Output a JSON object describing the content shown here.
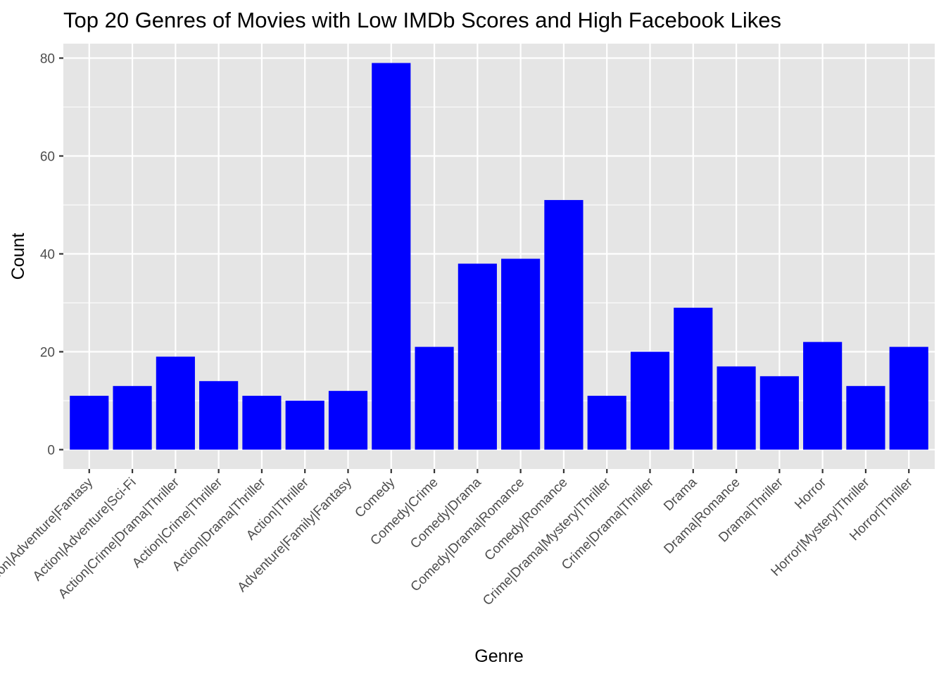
{
  "chart_data": {
    "type": "bar",
    "title": "Top 20 Genres of Movies with Low IMDb Scores and High Facebook Likes",
    "xlabel": "Genre",
    "ylabel": "Count",
    "ylim": [
      -3.95,
      82.95
    ],
    "yticks": [
      0,
      20,
      40,
      60,
      80
    ],
    "grid": true,
    "legend": "none",
    "bar_color": "#0000ff",
    "panel_color": "#e5e5e5",
    "grid_color": "#ffffff",
    "categories": [
      "Action|Adventure|Fantasy",
      "Action|Adventure|Sci-Fi",
      "Action|Crime|Drama|Thriller",
      "Action|Crime|Thriller",
      "Action|Drama|Thriller",
      "Action|Thriller",
      "Adventure|Family|Fantasy",
      "Comedy",
      "Comedy|Crime",
      "Comedy|Drama",
      "Comedy|Drama|Romance",
      "Comedy|Romance",
      "Crime|Drama|Mystery|Thriller",
      "Crime|Drama|Thriller",
      "Drama",
      "Drama|Romance",
      "Drama|Thriller",
      "Horror",
      "Horror|Mystery|Thriller",
      "Horror|Thriller"
    ],
    "values": [
      11,
      13,
      19,
      14,
      11,
      10,
      12,
      79,
      21,
      38,
      39,
      51,
      11,
      20,
      29,
      17,
      15,
      22,
      13,
      21
    ]
  }
}
